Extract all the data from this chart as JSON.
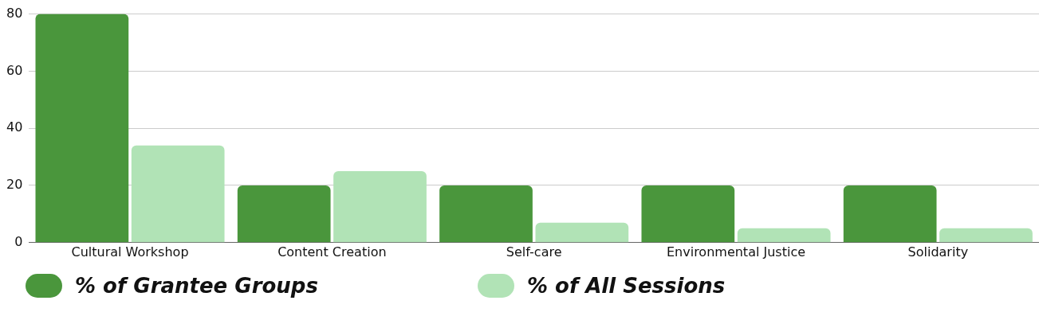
{
  "chart_data": {
    "type": "bar",
    "categories": [
      "Cultural Workshop",
      "Content Creation",
      "Self-care",
      "Environmental Justice",
      "Solidarity"
    ],
    "series": [
      {
        "name": "% of Grantee Groups",
        "color": "#4a963c",
        "values": [
          80,
          20,
          20,
          20,
          20
        ]
      },
      {
        "name": "% of All Sessions",
        "color": "#b1e3b6",
        "values": [
          34,
          25,
          7,
          5,
          5
        ]
      }
    ],
    "ylim": [
      0,
      80
    ],
    "yticks": [
      0,
      20,
      40,
      60,
      80
    ],
    "grid": "y",
    "legend": "bottom"
  }
}
